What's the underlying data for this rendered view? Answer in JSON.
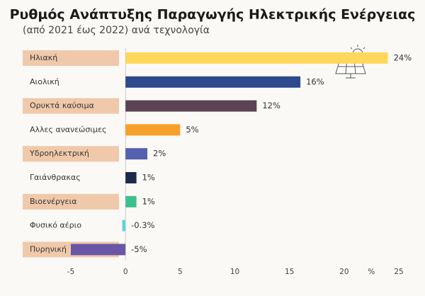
{
  "chart_data": {
    "type": "bar",
    "orientation": "horizontal",
    "title": "Ρυθμός Ανάπτυξης Παραγωγής Ηλεκτρικής Ενέργειας",
    "subtitle": "(από 2021 έως 2022) ανά τεχνολογία",
    "categories": [
      "Ηλιακή",
      "Αιολική",
      "Ορυκτά καύσιμα",
      "Αλλες ανανεώσιμες",
      "Υδροηλεκτρική",
      "Γαιάνθρακας",
      "Βιοενέργεια",
      "Φυσικό αέριο",
      "Πυρηνική"
    ],
    "values": [
      24,
      16,
      12,
      5,
      2,
      1,
      1,
      -0.3,
      -5
    ],
    "value_labels": [
      "24%",
      "16%",
      "12%",
      "5%",
      "2%",
      "1%",
      "1%",
      "-0.3%",
      "-5%"
    ],
    "colors": [
      "#fdd85d",
      "#2e4a8c",
      "#5b4456",
      "#f7a12b",
      "#5560b0",
      "#1b2a4a",
      "#3dbf8e",
      "#5fd3e0",
      "#6a56a6"
    ],
    "x_label": "%",
    "xlim": [
      -5,
      25
    ],
    "xticks": [
      -5,
      0,
      5,
      10,
      15,
      20,
      25
    ]
  }
}
